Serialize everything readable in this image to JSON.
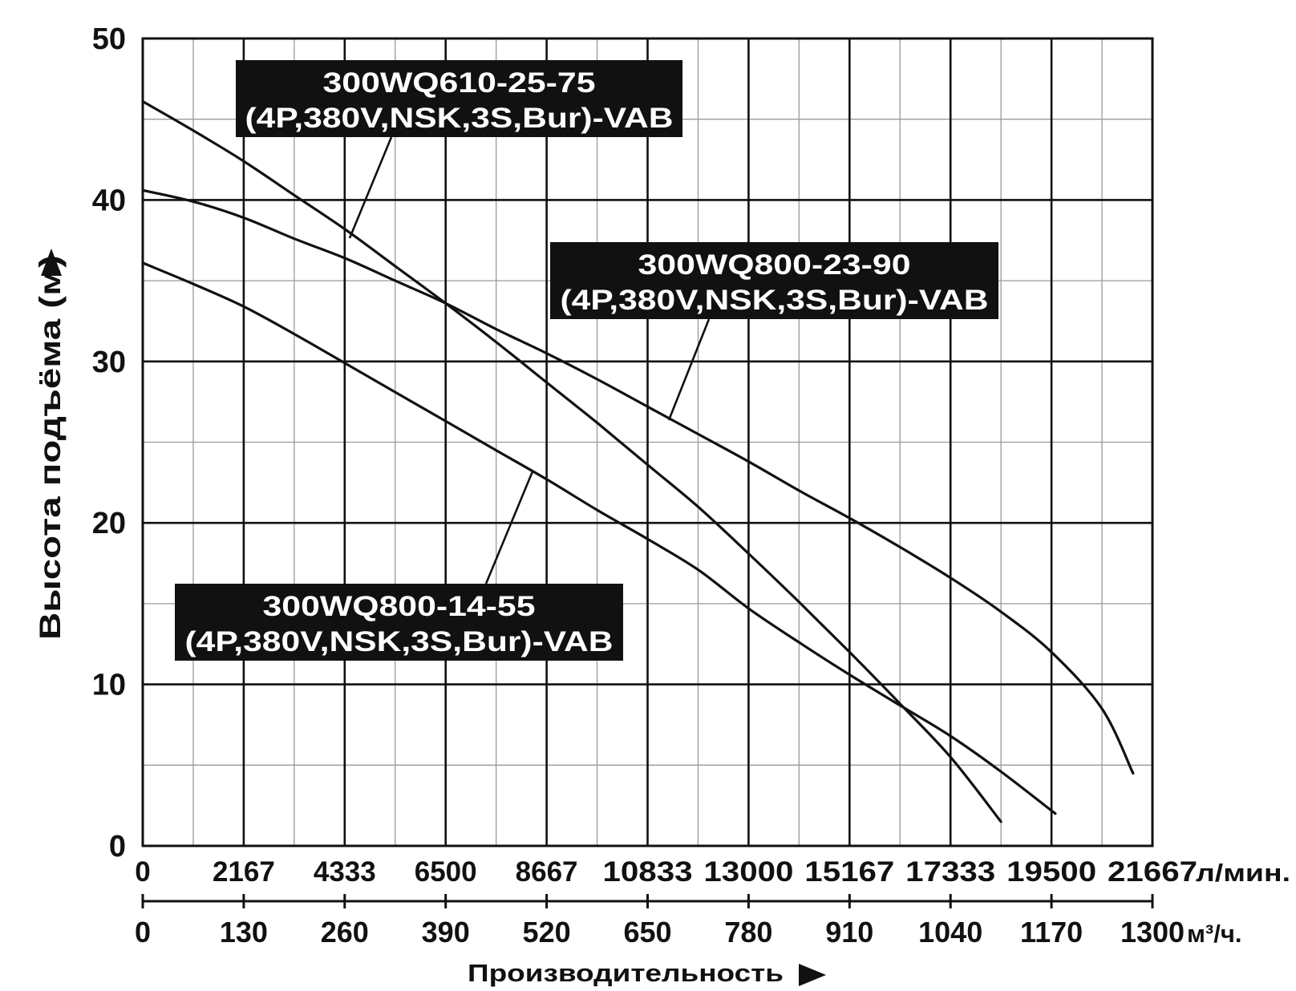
{
  "chart_data": {
    "type": "line",
    "title": "",
    "xlabel": "Производительность",
    "ylabel": "Высота подъёма (м)",
    "xlim": [
      0,
      1300
    ],
    "ylim": [
      0,
      50
    ],
    "grid": true,
    "y_ticks": [
      "0",
      "10",
      "20",
      "30",
      "40",
      "50"
    ],
    "x_ticks_lmin": [
      "0",
      "2167",
      "4333",
      "6500",
      "8667",
      "10833",
      "13000",
      "15167",
      "17333",
      "19500",
      "21667"
    ],
    "x_unit_lmin": "л/мин.",
    "x_ticks_m3h": [
      "0",
      "130",
      "260",
      "390",
      "520",
      "650",
      "780",
      "910",
      "1040",
      "1170",
      "1300"
    ],
    "x_unit_m3h": "м³/ч.",
    "series": [
      {
        "name_line1": "300WQ610-25-75",
        "name_line2": "(4P,380V,NSK,3S,Bur)-VAB",
        "x": [
          0,
          65,
          130,
          195,
          260,
          325,
          390,
          455,
          520,
          585,
          650,
          715,
          780,
          845,
          910,
          975,
          1040,
          1105
        ],
        "y": [
          46.1,
          44.3,
          42.4,
          40.3,
          38.2,
          35.9,
          33.6,
          31.2,
          28.7,
          26.2,
          23.6,
          21.0,
          18.1,
          15.1,
          12.0,
          8.8,
          5.5,
          1.5
        ]
      },
      {
        "name_line1": "300WQ800-23-90",
        "name_line2": "(4P,380V,NSK,3S,Bur)-VAB",
        "x": [
          0,
          65,
          130,
          195,
          260,
          325,
          390,
          455,
          520,
          585,
          650,
          715,
          780,
          845,
          910,
          975,
          1040,
          1105,
          1170,
          1235,
          1275
        ],
        "y": [
          40.6,
          39.9,
          38.9,
          37.6,
          36.4,
          35.0,
          33.6,
          32.0,
          30.5,
          28.9,
          27.2,
          25.5,
          23.8,
          22.0,
          20.3,
          18.5,
          16.6,
          14.5,
          12.0,
          8.5,
          4.5
        ]
      },
      {
        "name_line1": "300WQ800-14-55",
        "name_line2": "(4P,380V,NSK,3S,Bur)-VAB",
        "x": [
          0,
          65,
          130,
          195,
          260,
          325,
          390,
          455,
          520,
          585,
          650,
          715,
          780,
          845,
          910,
          975,
          1040,
          1105,
          1175
        ],
        "y": [
          36.1,
          34.8,
          33.4,
          31.7,
          29.9,
          28.1,
          26.3,
          24.5,
          22.7,
          20.8,
          19.0,
          17.1,
          14.7,
          12.6,
          10.6,
          8.7,
          6.8,
          4.6,
          2.0
        ]
      }
    ]
  }
}
